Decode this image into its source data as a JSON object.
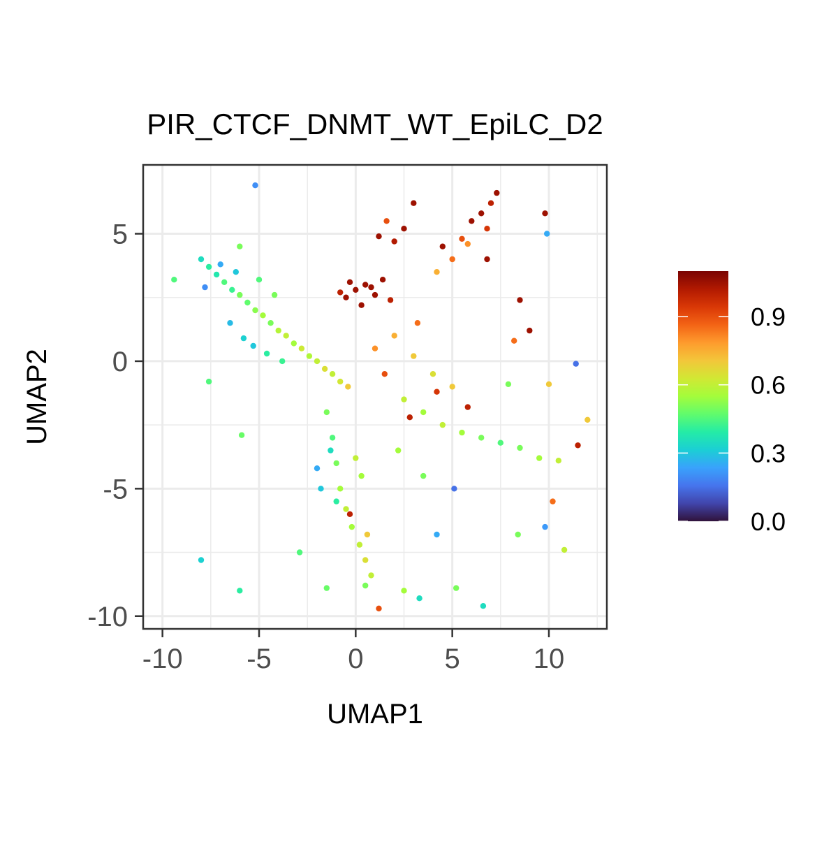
{
  "chart_data": {
    "type": "scatter",
    "title": "PIR_CTCF_DNMT_WT_EpiLC_D2",
    "xlabel": "UMAP1",
    "ylabel": "UMAP2",
    "xlim": [
      -11,
      13
    ],
    "ylim": [
      -10.5,
      7.7
    ],
    "grid": true,
    "x_ticks": [
      {
        "value": -10,
        "label": "-10"
      },
      {
        "value": -5,
        "label": "-5"
      },
      {
        "value": 0,
        "label": "0"
      },
      {
        "value": 5,
        "label": "5"
      },
      {
        "value": 10,
        "label": "10"
      }
    ],
    "y_ticks": [
      {
        "value": -10,
        "label": "-10"
      },
      {
        "value": -5,
        "label": "-5"
      },
      {
        "value": 0,
        "label": "0"
      },
      {
        "value": 5,
        "label": "5"
      }
    ],
    "colorbar": {
      "placement": "right",
      "min": 0.0,
      "max": 1.1,
      "ticks": [
        {
          "value": 0.0,
          "label": "0.0"
        },
        {
          "value": 0.3,
          "label": "0.3"
        },
        {
          "value": 0.6,
          "label": "0.6"
        },
        {
          "value": 0.9,
          "label": "0.9"
        }
      ],
      "colors": [
        "#30123b",
        "#4145ab",
        "#4675ed",
        "#39a2fc",
        "#1bcfd4",
        "#24eca6",
        "#61fc6c",
        "#a4fc3b",
        "#d1e834",
        "#f3c63a",
        "#fe9b2d",
        "#f36315",
        "#d93806",
        "#b11901",
        "#7a0402"
      ]
    },
    "points": [
      [
        -8.0,
        4.0,
        0.35
      ],
      [
        -7.6,
        3.7,
        0.4
      ],
      [
        -7.2,
        3.4,
        0.38
      ],
      [
        -6.8,
        3.1,
        0.45
      ],
      [
        -6.4,
        2.8,
        0.42
      ],
      [
        -6.0,
        2.6,
        0.5
      ],
      [
        -5.6,
        2.3,
        0.47
      ],
      [
        -5.2,
        2.0,
        0.52
      ],
      [
        -4.8,
        1.8,
        0.55
      ],
      [
        -4.4,
        1.5,
        0.5
      ],
      [
        -4.0,
        1.2,
        0.58
      ],
      [
        -3.6,
        1.0,
        0.6
      ],
      [
        -3.2,
        0.7,
        0.55
      ],
      [
        -2.8,
        0.5,
        0.62
      ],
      [
        -2.4,
        0.2,
        0.57
      ],
      [
        -2.0,
        0.0,
        0.6
      ],
      [
        -1.6,
        -0.3,
        0.65
      ],
      [
        -1.2,
        -0.5,
        0.6
      ],
      [
        -0.8,
        -0.8,
        0.63
      ],
      [
        -0.4,
        -1.0,
        0.7
      ],
      [
        -7.8,
        2.9,
        0.2
      ],
      [
        -7.0,
        3.8,
        0.25
      ],
      [
        -6.2,
        3.5,
        0.3
      ],
      [
        -5.0,
        3.2,
        0.45
      ],
      [
        -4.2,
        2.6,
        0.5
      ],
      [
        -6.5,
        1.5,
        0.28
      ],
      [
        -5.8,
        0.9,
        0.32
      ],
      [
        -5.3,
        0.6,
        0.3
      ],
      [
        -4.6,
        0.3,
        0.4
      ],
      [
        -3.8,
        0.0,
        0.42
      ],
      [
        -9.4,
        3.2,
        0.45
      ],
      [
        -6.0,
        4.5,
        0.5
      ],
      [
        -5.2,
        6.9,
        0.2
      ],
      [
        -7.6,
        -0.8,
        0.45
      ],
      [
        -5.9,
        -2.9,
        0.48
      ],
      [
        0.0,
        2.8,
        1.05
      ],
      [
        0.5,
        3.0,
        1.05
      ],
      [
        1.0,
        2.6,
        1.05
      ],
      [
        -0.5,
        2.5,
        1.05
      ],
      [
        1.4,
        3.2,
        1.05
      ],
      [
        0.3,
        2.2,
        1.05
      ],
      [
        -0.3,
        3.1,
        1.05
      ],
      [
        0.8,
        2.9,
        1.05
      ],
      [
        1.8,
        2.4,
        1.0
      ],
      [
        -0.8,
        2.7,
        1.0
      ],
      [
        1.2,
        4.9,
        1.05
      ],
      [
        2.0,
        4.7,
        1.02
      ],
      [
        2.5,
        5.2,
        1.05
      ],
      [
        3.0,
        6.2,
        1.05
      ],
      [
        1.6,
        5.5,
        0.9
      ],
      [
        4.5,
        4.5,
        1.05
      ],
      [
        5.0,
        4.0,
        0.85
      ],
      [
        5.5,
        4.8,
        0.9
      ],
      [
        6.0,
        5.5,
        1.05
      ],
      [
        6.5,
        5.8,
        1.05
      ],
      [
        7.0,
        6.2,
        1.0
      ],
      [
        7.3,
        6.6,
        1.05
      ],
      [
        6.8,
        5.2,
        0.95
      ],
      [
        5.8,
        4.6,
        0.8
      ],
      [
        4.2,
        3.5,
        0.75
      ],
      [
        1.0,
        0.5,
        0.8
      ],
      [
        2.0,
        1.0,
        0.75
      ],
      [
        3.0,
        0.2,
        0.7
      ],
      [
        4.0,
        -0.5,
        0.65
      ],
      [
        5.0,
        -1.0,
        0.7
      ],
      [
        2.5,
        -1.5,
        0.6
      ],
      [
        3.5,
        -2.0,
        0.55
      ],
      [
        4.5,
        -2.5,
        0.6
      ],
      [
        5.5,
        -2.8,
        0.55
      ],
      [
        6.5,
        -3.0,
        0.5
      ],
      [
        7.5,
        -3.2,
        0.45
      ],
      [
        8.5,
        -3.4,
        0.5
      ],
      [
        9.5,
        -3.8,
        0.55
      ],
      [
        10.5,
        -3.9,
        0.6
      ],
      [
        11.5,
        -3.3,
        1.0
      ],
      [
        1.5,
        -0.5,
        0.9
      ],
      [
        2.8,
        -2.2,
        1.0
      ],
      [
        4.2,
        -1.2,
        0.95
      ],
      [
        5.8,
        -1.8,
        1.0
      ],
      [
        3.2,
        1.5,
        0.85
      ],
      [
        -1.5,
        -2.0,
        0.5
      ],
      [
        -1.2,
        -3.0,
        0.45
      ],
      [
        -1.0,
        -4.0,
        0.5
      ],
      [
        -0.8,
        -5.0,
        0.55
      ],
      [
        -0.5,
        -5.8,
        0.6
      ],
      [
        -0.2,
        -6.5,
        0.55
      ],
      [
        0.2,
        -7.2,
        0.6
      ],
      [
        0.5,
        -7.8,
        0.65
      ],
      [
        0.8,
        -8.4,
        0.6
      ],
      [
        0.5,
        -8.8,
        0.5
      ],
      [
        -2.0,
        -4.2,
        0.25
      ],
      [
        -1.8,
        -5.0,
        0.3
      ],
      [
        -1.3,
        -3.5,
        0.35
      ],
      [
        0.0,
        -3.8,
        0.6
      ],
      [
        0.3,
        -4.5,
        0.55
      ],
      [
        -1.0,
        -5.5,
        0.4
      ],
      [
        -0.3,
        -6.0,
        1.0
      ],
      [
        0.6,
        -6.8,
        0.7
      ],
      [
        1.2,
        -9.7,
        0.9
      ],
      [
        -1.5,
        -8.9,
        0.48
      ],
      [
        9.9,
        5.0,
        0.25
      ],
      [
        9.8,
        5.8,
        1.05
      ],
      [
        11.4,
        -0.1,
        0.15
      ],
      [
        10.0,
        -0.9,
        0.7
      ],
      [
        12.0,
        -2.3,
        0.7
      ],
      [
        -8.0,
        -7.8,
        0.32
      ],
      [
        -6.0,
        -9.0,
        0.4
      ],
      [
        -2.9,
        -7.5,
        0.45
      ],
      [
        6.6,
        -9.6,
        0.35
      ],
      [
        9.8,
        -6.5,
        0.22
      ],
      [
        10.8,
        -7.4,
        0.6
      ],
      [
        8.4,
        -6.8,
        0.5
      ],
      [
        10.2,
        -5.5,
        0.85
      ],
      [
        4.2,
        -6.8,
        0.25
      ],
      [
        5.1,
        -5.0,
        0.15
      ],
      [
        2.5,
        -9.0,
        0.55
      ],
      [
        3.3,
        -9.3,
        0.35
      ],
      [
        5.2,
        -8.9,
        0.5
      ],
      [
        6.8,
        4.0,
        1.05
      ],
      [
        8.2,
        0.8,
        0.85
      ],
      [
        7.9,
        -0.9,
        0.5
      ],
      [
        8.5,
        2.4,
        1.05
      ],
      [
        9.0,
        1.2,
        1.05
      ],
      [
        3.5,
        -4.5,
        0.5
      ],
      [
        2.2,
        -3.5,
        0.55
      ]
    ]
  }
}
